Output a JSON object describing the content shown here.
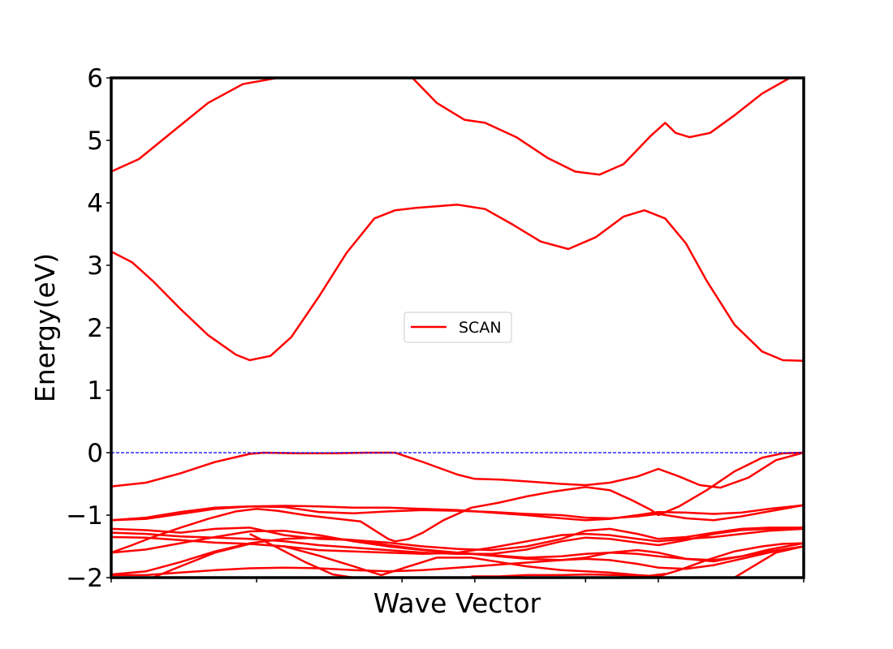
{
  "chart_data": {
    "type": "line",
    "title": "",
    "xlabel": "Wave Vector",
    "ylabel": "Energy(eV)",
    "xlim": [
      0,
      1
    ],
    "ylim": [
      -2,
      6
    ],
    "yticks": [
      -2,
      -1,
      0,
      1,
      2,
      3,
      4,
      5,
      6
    ],
    "ytick_labels": [
      "−2",
      "−1",
      "0",
      "1",
      "2",
      "3",
      "4",
      "5",
      "6"
    ],
    "xticks": [
      0.0,
      0.21,
      0.42,
      0.525,
      0.685,
      0.79,
      1.0
    ],
    "xtick_labels": [
      "",
      "",
      "",
      "",
      "",
      "",
      ""
    ],
    "reference_line": {
      "y": 0,
      "color": "#0000ff",
      "style": "dashed"
    },
    "legend": {
      "entries": [
        "SCAN"
      ],
      "placement": "center"
    },
    "line_color": "#ff0000",
    "series": [
      {
        "name": "SCAN",
        "x": [
          0.0,
          0.04,
          0.09,
          0.14,
          0.19,
          0.24
        ],
        "y": [
          4.5,
          4.7,
          5.15,
          5.6,
          5.9,
          6.0
        ]
      },
      {
        "x": [
          0.435,
          0.47,
          0.51,
          0.54,
          0.585,
          0.63,
          0.67,
          0.705,
          0.74,
          0.78,
          0.8,
          0.815,
          0.835,
          0.865,
          0.9,
          0.94,
          0.98
        ],
        "y": [
          6.0,
          5.6,
          5.33,
          5.28,
          5.05,
          4.72,
          4.5,
          4.45,
          4.62,
          5.08,
          5.28,
          5.12,
          5.05,
          5.12,
          5.4,
          5.75,
          6.0
        ]
      },
      {
        "x": [
          0.0,
          0.03,
          0.06,
          0.1,
          0.14,
          0.18,
          0.2,
          0.23,
          0.26,
          0.3,
          0.34,
          0.38,
          0.41,
          0.44,
          0.5,
          0.54,
          0.58,
          0.62,
          0.66,
          0.7,
          0.74,
          0.77,
          0.8,
          0.83,
          0.86,
          0.9,
          0.94,
          0.97,
          1.0
        ],
        "y": [
          3.22,
          3.05,
          2.75,
          2.3,
          1.88,
          1.57,
          1.48,
          1.55,
          1.85,
          2.5,
          3.2,
          3.75,
          3.88,
          3.92,
          3.97,
          3.9,
          3.65,
          3.38,
          3.26,
          3.45,
          3.78,
          3.88,
          3.75,
          3.35,
          2.75,
          2.05,
          1.62,
          1.48,
          1.47
        ]
      },
      {
        "x": [
          0.0,
          0.05,
          0.1,
          0.15,
          0.2,
          0.22,
          0.27,
          0.32,
          0.37,
          0.41,
          0.45,
          0.5,
          0.525,
          0.56,
          0.6,
          0.65,
          0.685,
          0.72,
          0.76,
          0.79,
          0.82,
          0.85,
          0.88,
          0.92,
          0.96,
          1.0
        ],
        "y": [
          -0.54,
          -0.48,
          -0.33,
          -0.15,
          -0.02,
          0.0,
          -0.01,
          -0.01,
          0.0,
          0.0,
          -0.15,
          -0.35,
          -0.42,
          -0.43,
          -0.46,
          -0.5,
          -0.52,
          -0.48,
          -0.38,
          -0.26,
          -0.38,
          -0.52,
          -0.56,
          -0.4,
          -0.12,
          0.0
        ]
      },
      {
        "x": [
          0.0,
          0.03,
          0.06,
          0.1,
          0.14,
          0.18,
          0.21,
          0.24,
          0.28,
          0.32,
          0.36,
          0.4,
          0.41,
          0.43,
          0.45,
          0.48,
          0.52,
          0.56,
          0.6,
          0.64,
          0.685,
          0.72,
          0.75,
          0.78,
          0.79,
          0.82,
          0.86,
          0.9,
          0.94,
          0.97,
          1.0
        ],
        "y": [
          -1.6,
          -1.48,
          -1.35,
          -1.2,
          -1.06,
          -0.94,
          -0.9,
          -0.93,
          -1.0,
          -1.05,
          -1.1,
          -1.38,
          -1.42,
          -1.38,
          -1.28,
          -1.08,
          -0.88,
          -0.8,
          -0.7,
          -0.62,
          -0.55,
          -0.6,
          -0.75,
          -0.92,
          -1.0,
          -0.86,
          -0.6,
          -0.3,
          -0.08,
          -0.01,
          0.0
        ]
      },
      {
        "x": [
          0.0,
          0.05,
          0.1,
          0.15,
          0.2,
          0.25,
          0.3,
          0.35,
          0.4,
          0.45,
          0.5,
          0.55,
          0.6,
          0.65,
          0.685,
          0.72,
          0.76,
          0.79,
          0.83,
          0.87,
          0.91,
          0.95,
          1.0
        ],
        "y": [
          -1.08,
          -1.06,
          -0.98,
          -0.9,
          -0.86,
          -0.85,
          -0.86,
          -0.88,
          -0.88,
          -0.9,
          -0.92,
          -0.96,
          -1.0,
          -1.05,
          -1.08,
          -1.06,
          -1.0,
          -0.95,
          -0.96,
          -0.98,
          -0.96,
          -0.9,
          -0.84
        ]
      },
      {
        "x": [
          0.0,
          0.05,
          0.1,
          0.15,
          0.2,
          0.25,
          0.3,
          0.35,
          0.4,
          0.45,
          0.5,
          0.55,
          0.6,
          0.65,
          0.685,
          0.72,
          0.76,
          0.79,
          0.83,
          0.87,
          0.91,
          0.95,
          1.0
        ],
        "y": [
          -1.08,
          -1.04,
          -0.95,
          -0.88,
          -0.86,
          -0.87,
          -0.95,
          -0.97,
          -0.94,
          -0.92,
          -0.93,
          -0.95,
          -0.98,
          -1.0,
          -1.04,
          -1.05,
          -1.02,
          -0.98,
          -1.05,
          -1.08,
          -1.02,
          -0.94,
          -0.84
        ]
      },
      {
        "x": [
          0.0,
          0.05,
          0.1,
          0.15,
          0.2,
          0.25,
          0.3,
          0.35,
          0.4,
          0.45,
          0.5,
          0.55,
          0.6,
          0.65,
          0.685,
          0.72,
          0.76,
          0.79,
          0.83,
          0.87,
          0.91,
          0.95,
          1.0
        ],
        "y": [
          -1.22,
          -1.24,
          -1.28,
          -1.22,
          -1.2,
          -1.32,
          -1.38,
          -1.4,
          -1.44,
          -1.5,
          -1.54,
          -1.56,
          -1.5,
          -1.38,
          -1.25,
          -1.22,
          -1.3,
          -1.38,
          -1.35,
          -1.28,
          -1.22,
          -1.2,
          -1.2
        ]
      },
      {
        "x": [
          0.0,
          0.05,
          0.1,
          0.15,
          0.2,
          0.25,
          0.3,
          0.35,
          0.4,
          0.45,
          0.5,
          0.55,
          0.6,
          0.65,
          0.685,
          0.72,
          0.76,
          0.79,
          0.83,
          0.87,
          0.91,
          0.95,
          1.0
        ],
        "y": [
          -1.28,
          -1.3,
          -1.34,
          -1.36,
          -1.38,
          -1.42,
          -1.48,
          -1.52,
          -1.56,
          -1.6,
          -1.62,
          -1.62,
          -1.55,
          -1.42,
          -1.36,
          -1.38,
          -1.44,
          -1.48,
          -1.4,
          -1.3,
          -1.24,
          -1.22,
          -1.2
        ]
      },
      {
        "x": [
          0.0,
          0.05,
          0.1,
          0.15,
          0.2,
          0.25,
          0.3,
          0.35,
          0.4,
          0.45,
          0.5,
          0.55,
          0.6,
          0.65,
          0.685,
          0.72,
          0.76,
          0.79,
          0.83,
          0.87,
          0.91,
          0.95,
          1.0
        ],
        "y": [
          -1.35,
          -1.36,
          -1.4,
          -1.44,
          -1.46,
          -1.5,
          -1.56,
          -1.58,
          -1.6,
          -1.62,
          -1.6,
          -1.52,
          -1.42,
          -1.32,
          -1.3,
          -1.32,
          -1.38,
          -1.42,
          -1.38,
          -1.35,
          -1.3,
          -1.25,
          -1.22
        ]
      },
      {
        "x": [
          0.0,
          0.05,
          0.1,
          0.15,
          0.2,
          0.25,
          0.3,
          0.35,
          0.4,
          0.45,
          0.5,
          0.55,
          0.6,
          0.65,
          0.685,
          0.72,
          0.76,
          0.79,
          0.83,
          0.87,
          0.91,
          0.95,
          1.0
        ],
        "y": [
          -1.6,
          -1.55,
          -1.45,
          -1.35,
          -1.26,
          -1.25,
          -1.32,
          -1.42,
          -1.5,
          -1.56,
          -1.6,
          -1.65,
          -1.7,
          -1.72,
          -1.68,
          -1.6,
          -1.56,
          -1.6,
          -1.7,
          -1.74,
          -1.66,
          -1.55,
          -1.45
        ]
      },
      {
        "x": [
          0.0,
          0.05,
          0.1,
          0.15,
          0.2,
          0.25,
          0.3,
          0.35,
          0.4,
          0.45,
          0.5,
          0.55,
          0.6,
          0.65,
          0.685,
          0.72,
          0.76,
          0.79,
          0.83,
          0.87,
          0.91,
          0.95,
          1.0
        ],
        "y": [
          -1.95,
          -1.9,
          -1.75,
          -1.58,
          -1.45,
          -1.38,
          -1.36,
          -1.4,
          -1.48,
          -1.55,
          -1.6,
          -1.64,
          -1.68,
          -1.66,
          -1.62,
          -1.6,
          -1.62,
          -1.66,
          -1.7,
          -1.72,
          -1.66,
          -1.58,
          -1.5
        ]
      },
      {
        "x": [
          0.0,
          0.05,
          0.1,
          0.15,
          0.2,
          0.25,
          0.3,
          0.35,
          0.4,
          0.45,
          0.5,
          0.55,
          0.6,
          0.65,
          0.685,
          0.72,
          0.76,
          0.79,
          0.83,
          0.87,
          0.91,
          0.95,
          1.0
        ],
        "y": [
          -1.96,
          -1.96,
          -1.92,
          -1.88,
          -1.85,
          -1.84,
          -1.85,
          -1.88,
          -1.9,
          -1.88,
          -1.84,
          -1.8,
          -1.76,
          -1.72,
          -1.7,
          -1.72,
          -1.78,
          -1.84,
          -1.86,
          -1.8,
          -1.7,
          -1.6,
          -1.5
        ]
      },
      {
        "x": [
          0.06,
          0.1,
          0.15,
          0.2,
          0.25,
          0.3,
          0.35,
          0.39,
          0.43,
          0.47,
          0.52,
          0.56,
          0.6,
          0.65,
          0.685,
          0.72,
          0.76,
          0.79,
          0.82,
          0.86,
          0.9,
          0.94,
          0.97,
          1.0
        ],
        "y": [
          -2.0,
          -1.82,
          -1.6,
          -1.46,
          -1.5,
          -1.65,
          -1.82,
          -1.96,
          -1.82,
          -1.68,
          -1.68,
          -1.75,
          -1.82,
          -1.88,
          -1.9,
          -1.92,
          -1.96,
          -1.98,
          -1.88,
          -1.72,
          -1.58,
          -1.5,
          -1.46,
          -1.45
        ]
      },
      {
        "x": [
          0.2,
          0.24,
          0.28,
          0.32,
          0.35
        ],
        "y": [
          -1.3,
          -1.52,
          -1.75,
          -1.95,
          -2.0
        ]
      },
      {
        "x": [
          0.52,
          0.56,
          0.6,
          0.65,
          0.69,
          0.73,
          0.77,
          0.8
        ],
        "y": [
          -1.98,
          -1.98,
          -1.96,
          -1.96,
          -1.95,
          -1.96,
          -1.98,
          -1.94
        ]
      },
      {
        "x": [
          0.9,
          0.93,
          0.96,
          1.0
        ],
        "y": [
          -2.0,
          -1.8,
          -1.6,
          -1.5
        ]
      }
    ]
  }
}
